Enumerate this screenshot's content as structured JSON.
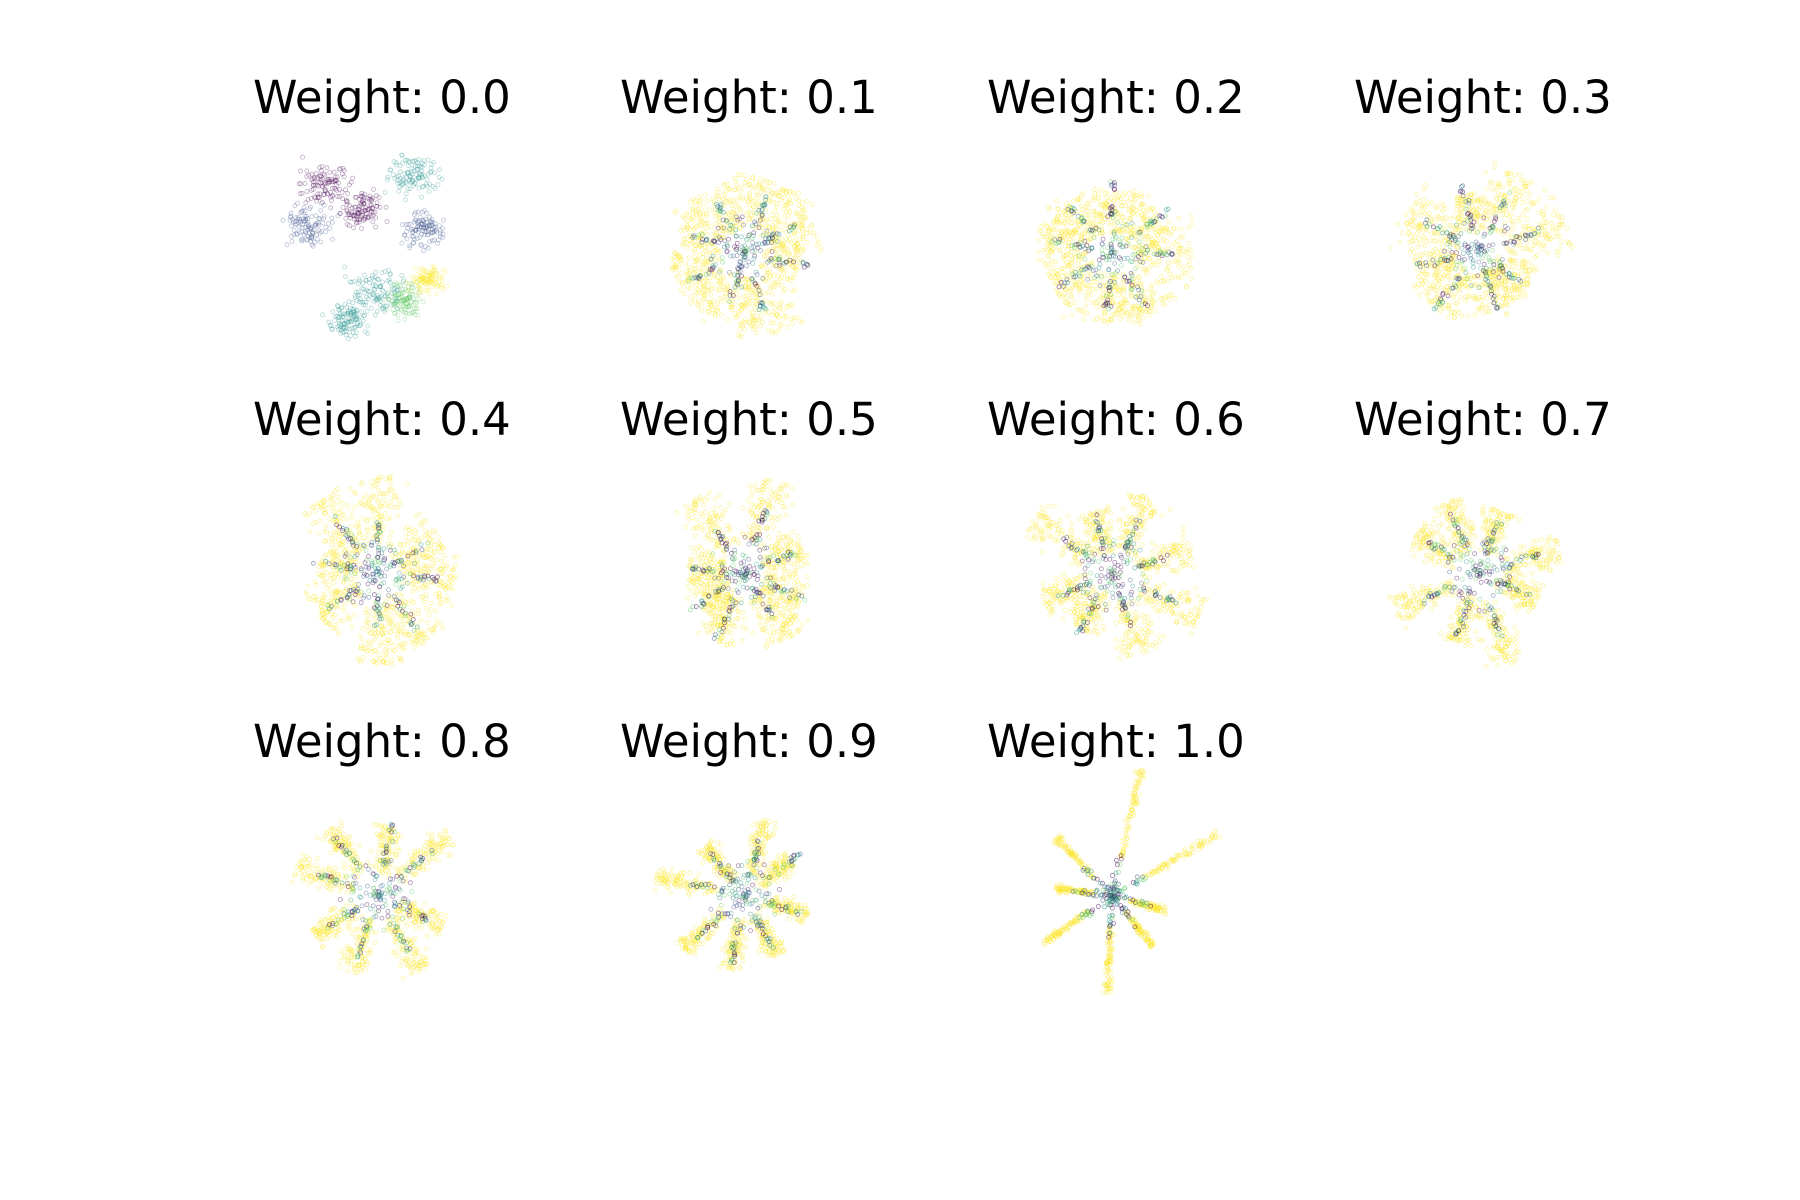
{
  "chart_data": {
    "type": "scatter",
    "panel_count": 11,
    "grid": false,
    "axes_visible": false,
    "colormap": [
      "#440154",
      "#3b528b",
      "#21918c",
      "#5ec962",
      "#fde725"
    ],
    "panels": [
      {
        "title": "Weight: 0.0",
        "weight": 0.0,
        "layout": "blob"
      },
      {
        "title": "Weight: 0.1",
        "weight": 0.1,
        "layout": "petals",
        "rotation_deg": 20
      },
      {
        "title": "Weight: 0.2",
        "weight": 0.2,
        "layout": "petals",
        "rotation_deg": 5
      },
      {
        "title": "Weight: 0.3",
        "weight": 0.3,
        "layout": "petals",
        "rotation_deg": 35
      },
      {
        "title": "Weight: 0.4",
        "weight": 0.4,
        "layout": "petals",
        "rotation_deg": 50
      },
      {
        "title": "Weight: 0.5",
        "weight": 0.5,
        "layout": "petals",
        "rotation_deg": 15
      },
      {
        "title": "Weight: 0.6",
        "weight": 0.6,
        "layout": "petals",
        "rotation_deg": 75
      },
      {
        "title": "Weight: 0.7",
        "weight": 0.7,
        "layout": "petals",
        "rotation_deg": 25
      },
      {
        "title": "Weight: 0.8",
        "weight": 0.8,
        "layout": "petals",
        "rotation_deg": 60
      },
      {
        "title": "Weight: 0.9",
        "weight": 0.9,
        "layout": "petals",
        "rotation_deg": 10
      },
      {
        "title": "Weight: 1.0",
        "weight": 1.0,
        "layout": "star",
        "rotation_deg": -40
      }
    ]
  }
}
